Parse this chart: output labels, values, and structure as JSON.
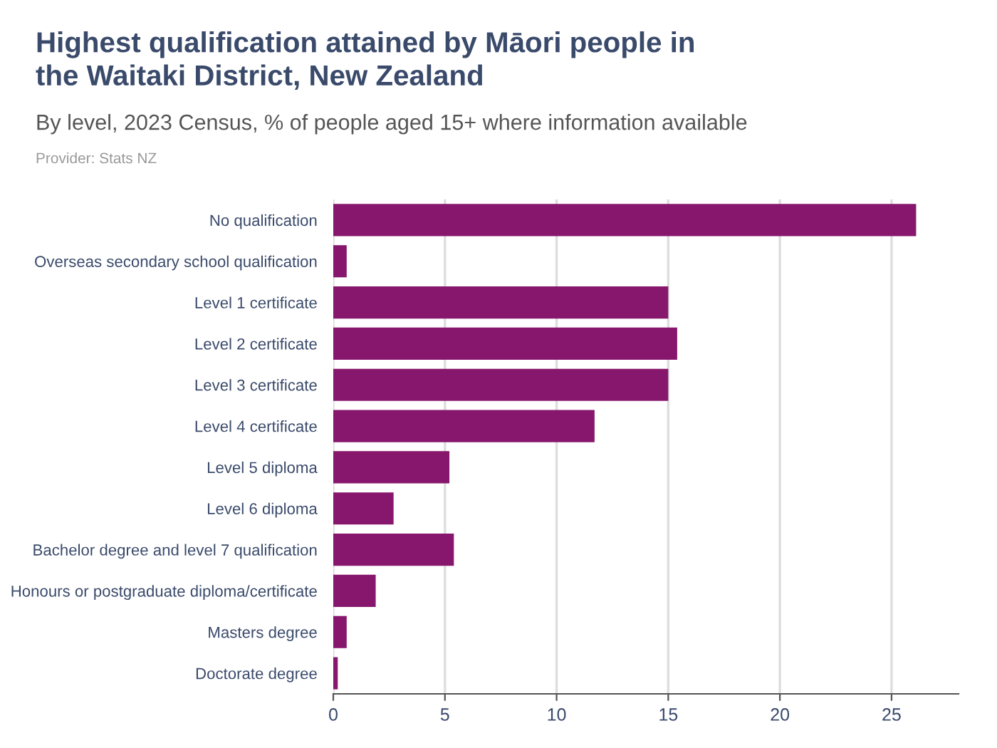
{
  "chart_data": {
    "type": "bar",
    "orientation": "horizontal",
    "title": "Highest qualification attained by Māori people in\nthe Waitaki District, New Zealand",
    "subtitle": "By level, 2023 Census, % of people aged 15+ where information available",
    "annotations": [
      "Provider: Stats NZ"
    ],
    "categories": [
      "No qualification",
      "Overseas secondary school qualification",
      "Level 1 certificate",
      "Level 2 certificate",
      "Level 3 certificate",
      "Level 4 certificate",
      "Level 5 diploma",
      "Level 6 diploma",
      "Bachelor degree and level 7 qualification",
      "Honours or postgraduate diploma/certificate",
      "Masters degree",
      "Doctorate degree"
    ],
    "values": [
      26.1,
      0.6,
      15.0,
      15.4,
      15.0,
      11.7,
      5.2,
      2.7,
      5.4,
      1.9,
      0.6,
      0.2
    ],
    "color": "#87176d",
    "xlim": [
      0,
      28
    ],
    "xticks": [
      0,
      5,
      10,
      15,
      20,
      25
    ],
    "grid": "x"
  }
}
